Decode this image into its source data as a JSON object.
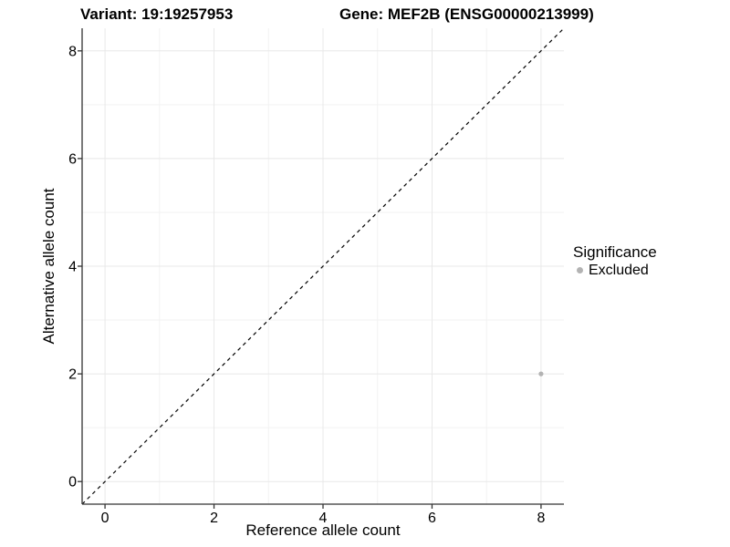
{
  "titles": {
    "variant": "Variant: 19:19257953",
    "gene": "Gene: MEF2B (ENSG00000213999)"
  },
  "chart_data": {
    "type": "scatter",
    "title": "Variant: 19:19257953   Gene: MEF2B (ENSG00000213999)",
    "xlabel": "Reference allele count",
    "ylabel": "Alternative allele count",
    "xlim": [
      -0.42,
      8.42
    ],
    "ylim": [
      -0.42,
      8.42
    ],
    "x_ticks": [
      0,
      2,
      4,
      6,
      8
    ],
    "y_ticks": [
      0,
      2,
      4,
      6,
      8
    ],
    "x_minor_ticks": [
      1,
      3,
      5,
      7
    ],
    "y_minor_ticks": [
      1,
      3,
      5,
      7
    ],
    "grid": "on",
    "series": [
      {
        "name": "Excluded",
        "color": "#b3b3b3",
        "points": [
          {
            "x": 8,
            "y": 2
          }
        ]
      }
    ],
    "reference_line": {
      "kind": "identity",
      "style": "dashed",
      "color": "#000000",
      "from": [
        -0.42,
        -0.42
      ],
      "to": [
        8.42,
        8.42
      ]
    },
    "legend": {
      "title": "Significance",
      "position": "right",
      "entries": [
        {
          "label": "Excluded",
          "color": "#b3b3b3"
        }
      ]
    },
    "colors": {
      "axis_line": "#333333",
      "tick_mark": "#333333",
      "grid_major": "#e8e8e8",
      "grid_minor": "#f2f2f2",
      "point": "#b3b3b3",
      "background": "#ffffff"
    }
  }
}
